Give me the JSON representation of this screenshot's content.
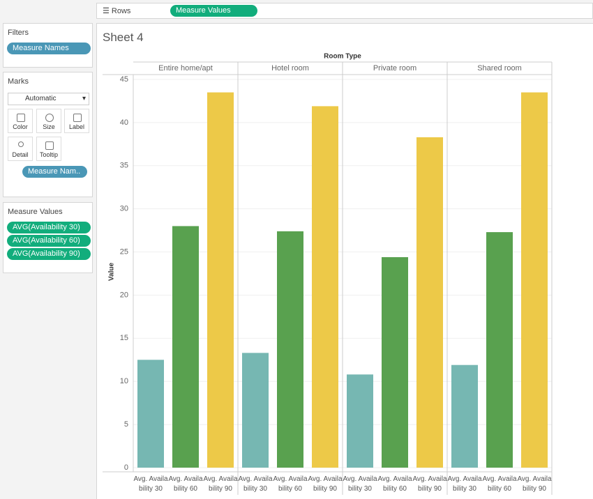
{
  "shelf": {
    "label": "Rows",
    "pill": "Measure Values"
  },
  "filters": {
    "title": "Filters",
    "pills": [
      "Measure Names"
    ]
  },
  "marks": {
    "title": "Marks",
    "mark_type": "Automatic",
    "buttons": [
      "Color",
      "Size",
      "Label",
      "Detail",
      "Tooltip"
    ],
    "pill": "Measure Nam.."
  },
  "measure_values": {
    "title": "Measure Values",
    "pills": [
      "AVG(Availability 30)",
      "AVG(Availability 60)",
      "AVG(Availability 90)"
    ]
  },
  "chart_data": {
    "type": "bar",
    "title": "Sheet 4",
    "column_header": "Room Type",
    "y_label": "Value",
    "categories": [
      "Avg. Availability 30",
      "Avg. Availability 60",
      "Avg. Availability 90"
    ],
    "colors": [
      "#76b7b2",
      "#59a14f",
      "#edc948"
    ],
    "panes": [
      {
        "name": "Entire home/apt",
        "values": [
          12.5,
          28.0,
          43.5
        ]
      },
      {
        "name": "Hotel room",
        "values": [
          13.3,
          27.4,
          41.9
        ]
      },
      {
        "name": "Private room",
        "values": [
          10.8,
          24.4,
          38.3
        ]
      },
      {
        "name": "Shared room",
        "values": [
          11.9,
          27.3,
          43.5
        ]
      }
    ],
    "ylim": [
      0,
      45
    ],
    "yticks": [
      0,
      5,
      10,
      15,
      20,
      25,
      30,
      35,
      40,
      45
    ],
    "grid": true
  }
}
